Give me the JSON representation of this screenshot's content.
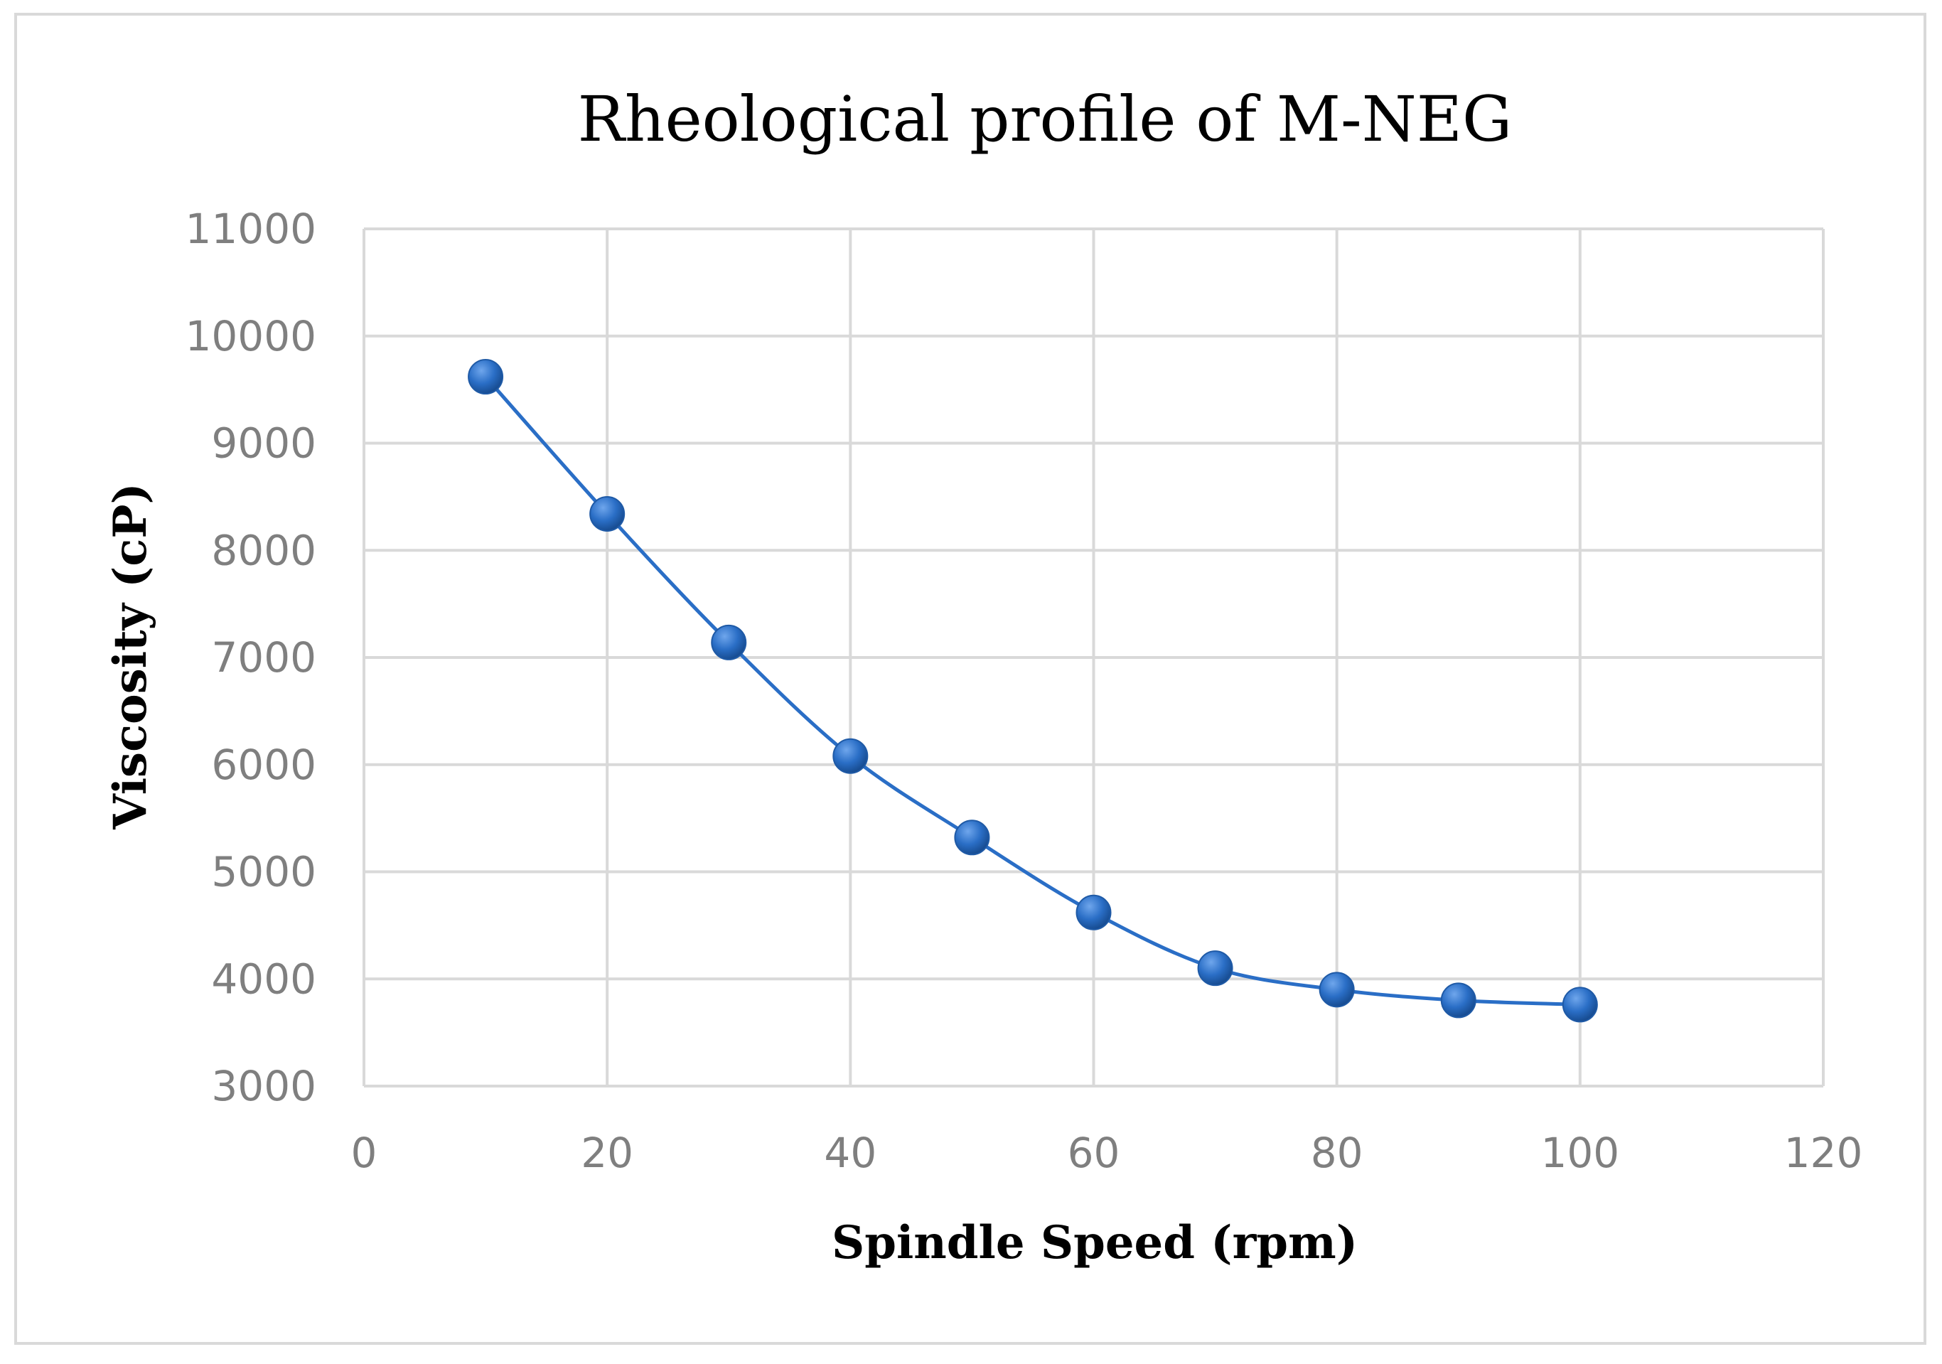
{
  "chart_data": {
    "type": "scatter",
    "title": "Rheological profile of M-NEG",
    "xlabel": "Spindle Speed (rpm)",
    "ylabel": "Viscosity (cP)",
    "xlim": [
      0,
      120
    ],
    "ylim": [
      3000,
      11000
    ],
    "x_ticks": [
      0,
      20,
      40,
      60,
      80,
      100,
      120
    ],
    "y_ticks": [
      3000,
      4000,
      5000,
      6000,
      7000,
      8000,
      9000,
      10000,
      11000
    ],
    "grid": true,
    "legend": "none",
    "series": [
      {
        "name": "M-NEG",
        "color": "#2a6ec6",
        "smooth": true,
        "x": [
          10,
          20,
          30,
          40,
          50,
          60,
          70,
          80,
          90,
          100
        ],
        "y": [
          9620,
          8340,
          7140,
          6080,
          5320,
          4620,
          4100,
          3900,
          3800,
          3760
        ]
      }
    ]
  }
}
